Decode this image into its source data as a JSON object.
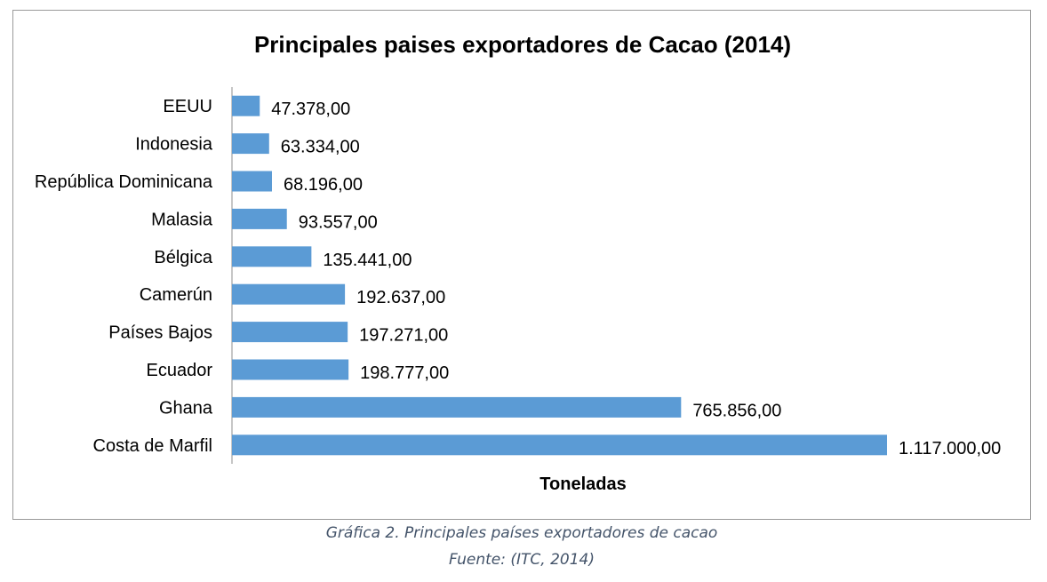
{
  "chart_data": {
    "type": "bar",
    "orientation": "horizontal",
    "title": "Principales paises exportadores de Cacao (2014)",
    "xlabel": "Toneladas",
    "ylabel": "",
    "categories": [
      "EEUU",
      "Indonesia",
      "República Dominicana",
      "Malasia",
      "Bélgica",
      "Camerún",
      "Países Bajos",
      "Ecuador",
      "Ghana",
      "Costa de Marfil"
    ],
    "values": [
      47378,
      63334,
      68196,
      93557,
      135441,
      192637,
      197271,
      198777,
      765856,
      1117000
    ],
    "value_labels": [
      "47.378,00",
      "63.334,00",
      "68.196,00",
      "93.557,00",
      "135.441,00",
      "192.637,00",
      "197.271,00",
      "198.777,00",
      "765.856,00",
      "1.117.000,00"
    ],
    "xlim": [
      0,
      1117000
    ],
    "bar_color": "#5b9bd5",
    "grid": false,
    "legend": "none"
  },
  "caption": {
    "line1": "Gráfica 2. Principales países exportadores de cacao",
    "line2": "Fuente: (ITC, 2014)"
  }
}
